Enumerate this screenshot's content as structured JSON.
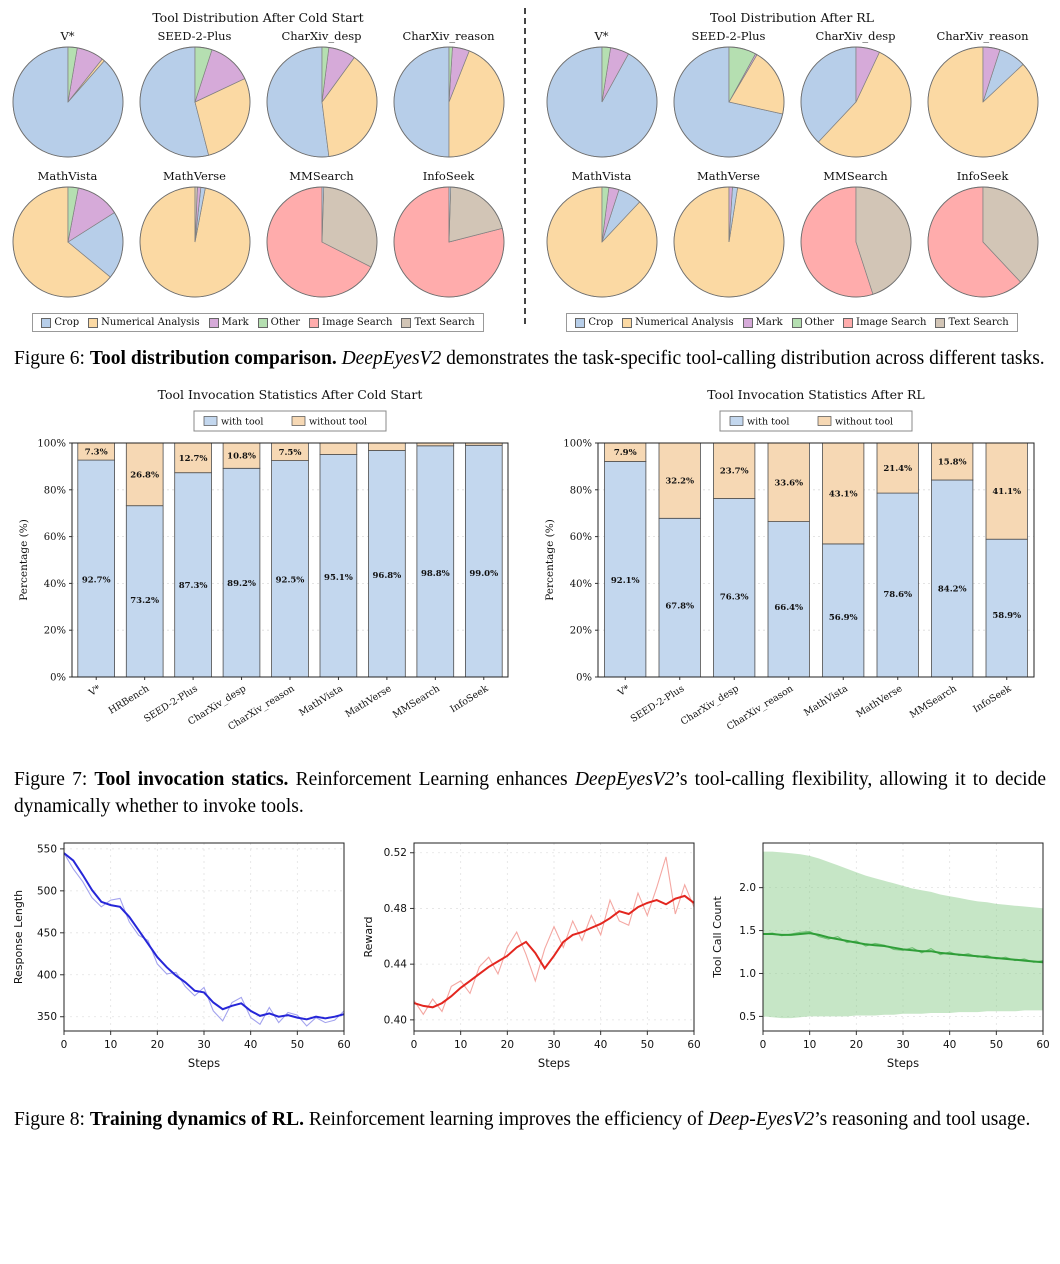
{
  "captions": {
    "fig6": {
      "label": "Figure 6: ",
      "bold": "Tool distribution comparison.",
      "pre": " ",
      "italic": "DeepEyesV2",
      "rest": " demonstrates the task-specific tool-calling distribution across different tasks."
    },
    "fig7": {
      "label": "Figure 7: ",
      "bold": "Tool invocation statics.",
      "pre": " Reinforcement Learning enhances ",
      "italic": "DeepEyesV2",
      "rest": "’s tool-calling flexibility, allowing it to decide dynamically whether to invoke tools."
    },
    "fig8": {
      "label": "Figure 8: ",
      "bold": "Training dynamics of RL.",
      "pre": " Reinforcement learning improves the efficiency of ",
      "italic": "Deep-EyesV2",
      "rest": "’s reasoning and tool usage."
    }
  },
  "pie_legend": [
    "Crop",
    "Numerical Analysis",
    "Mark",
    "Other",
    "Image Search",
    "Text Search"
  ],
  "tool_colors": {
    "Crop": "#b7cee9",
    "Numerical Analysis": "#fbd9a3",
    "Mark": "#d6aad9",
    "Other": "#b5dfb1",
    "Image Search": "#ffacac",
    "Text Search": "#d2c5b6"
  },
  "chart_data": [
    {
      "type": "pie",
      "title": "Tool Distribution After Cold Start",
      "pies": [
        {
          "label": "V*",
          "slices": [
            [
              "Crop",
              88.5
            ],
            [
              "Numerical Analysis",
              0.8
            ],
            [
              "Mark",
              8
            ],
            [
              "Other",
              2.7
            ]
          ]
        },
        {
          "label": "SEED-2-Plus",
          "slices": [
            [
              "Crop",
              54
            ],
            [
              "Numerical Analysis",
              28
            ],
            [
              "Mark",
              13
            ],
            [
              "Other",
              5
            ]
          ]
        },
        {
          "label": "CharXiv_desp",
          "slices": [
            [
              "Crop",
              52
            ],
            [
              "Numerical Analysis",
              38
            ],
            [
              "Mark",
              8
            ],
            [
              "Other",
              2
            ]
          ]
        },
        {
          "label": "CharXiv_reason",
          "slices": [
            [
              "Crop",
              50
            ],
            [
              "Numerical Analysis",
              44
            ],
            [
              "Mark",
              5
            ],
            [
              "Other",
              1
            ]
          ]
        },
        {
          "label": "MathVista",
          "slices": [
            [
              "Numerical Analysis",
              64
            ],
            [
              "Crop",
              20
            ],
            [
              "Mark",
              13
            ],
            [
              "Other",
              3
            ]
          ]
        },
        {
          "label": "MathVerse",
          "slices": [
            [
              "Numerical Analysis",
              97
            ],
            [
              "Crop",
              1.3
            ],
            [
              "Mark",
              1
            ],
            [
              "Text Search",
              0.7
            ]
          ]
        },
        {
          "label": "MMSearch",
          "slices": [
            [
              "Image Search",
              67.5
            ],
            [
              "Text Search",
              32
            ],
            [
              "Crop",
              0.5
            ]
          ]
        },
        {
          "label": "InfoSeek",
          "slices": [
            [
              "Image Search",
              79
            ],
            [
              "Text Search",
              20.5
            ],
            [
              "Crop",
              0.5
            ]
          ]
        }
      ]
    },
    {
      "type": "pie",
      "title": "Tool Distribution After RL",
      "pies": [
        {
          "label": "V*",
          "slices": [
            [
              "Crop",
              92
            ],
            [
              "Mark",
              5.5
            ],
            [
              "Other",
              2.5
            ]
          ]
        },
        {
          "label": "SEED-2-Plus",
          "slices": [
            [
              "Crop",
              71.5
            ],
            [
              "Numerical Analysis",
              20
            ],
            [
              "Mark",
              0.5
            ],
            [
              "Other",
              8
            ]
          ]
        },
        {
          "label": "CharXiv_desp",
          "slices": [
            [
              "Crop",
              38
            ],
            [
              "Numerical Analysis",
              55
            ],
            [
              "Mark",
              7
            ]
          ]
        },
        {
          "label": "CharXiv_reason",
          "slices": [
            [
              "Numerical Analysis",
              87
            ],
            [
              "Crop",
              8
            ],
            [
              "Mark",
              5
            ]
          ]
        },
        {
          "label": "MathVista",
          "slices": [
            [
              "Numerical Analysis",
              88
            ],
            [
              "Crop",
              7
            ],
            [
              "Mark",
              3
            ],
            [
              "Other",
              2
            ]
          ]
        },
        {
          "label": "MathVerse",
          "slices": [
            [
              "Numerical Analysis",
              97.5
            ],
            [
              "Crop",
              1.5
            ],
            [
              "Mark",
              1
            ]
          ]
        },
        {
          "label": "MMSearch",
          "slices": [
            [
              "Image Search",
              55
            ],
            [
              "Text Search",
              45
            ]
          ]
        },
        {
          "label": "InfoSeek",
          "slices": [
            [
              "Image Search",
              62
            ],
            [
              "Text Search",
              38
            ]
          ]
        }
      ]
    },
    {
      "type": "bar",
      "title": "Tool Invocation Statistics After Cold Start",
      "ylabel": "Percentage (%)",
      "categories": [
        "V*",
        "HRBench",
        "SEED-2-Plus",
        "CharXiv_desp",
        "CharXiv_reason",
        "MathVista",
        "MathVerse",
        "MMSearch",
        "InfoSeek"
      ],
      "series": [
        {
          "name": "with tool",
          "color": "#c3d7ee",
          "values": [
            92.7,
            73.2,
            87.3,
            89.2,
            92.5,
            95.1,
            96.8,
            98.8,
            99.0
          ]
        },
        {
          "name": "without tool",
          "color": "#f6d8b4",
          "values": [
            7.3,
            26.8,
            12.7,
            10.8,
            7.5,
            4.9,
            3.2,
            1.2,
            1.0
          ]
        }
      ],
      "ytick_vals": [
        0,
        20,
        40,
        60,
        80,
        100
      ],
      "ytick_labels": [
        "0%",
        "20%",
        "40%",
        "60%",
        "80%",
        "100%"
      ],
      "label_min": 5
    },
    {
      "type": "bar",
      "title": "Tool Invocation Statistics After RL",
      "ylabel": "Percentage (%)",
      "categories": [
        "V*",
        "SEED-2-Plus",
        "CharXiv_desp",
        "CharXiv_reason",
        "MathVista",
        "MathVerse",
        "MMSearch",
        "InfoSeek"
      ],
      "series": [
        {
          "name": "with tool",
          "color": "#c3d7ee",
          "values": [
            92.1,
            67.8,
            76.3,
            66.4,
            56.9,
            78.6,
            84.2,
            58.9
          ]
        },
        {
          "name": "without tool",
          "color": "#f6d8b4",
          "values": [
            7.9,
            32.2,
            23.7,
            33.6,
            43.1,
            21.4,
            15.8,
            41.1
          ]
        }
      ],
      "ytick_vals": [
        0,
        20,
        40,
        60,
        80,
        100
      ],
      "ytick_labels": [
        "0%",
        "20%",
        "40%",
        "60%",
        "80%",
        "100%"
      ],
      "label_min": 5
    },
    {
      "type": "line",
      "ylabel": "Response Length",
      "xlabel": "Steps",
      "color": "#2626d8",
      "raw_color": "#a3a3ee",
      "x_step": 2,
      "xtick_vals": [
        0,
        10,
        20,
        30,
        40,
        50,
        60
      ],
      "ylim": [
        333,
        557
      ],
      "ytick_vals": [
        350,
        400,
        450,
        500,
        550
      ],
      "ytick_labels": [
        "350",
        "400",
        "450",
        "500",
        "550"
      ],
      "smooth": [
        545,
        536,
        519,
        501,
        487,
        483,
        481,
        469,
        453,
        437,
        421,
        409,
        399,
        391,
        381,
        379,
        367,
        359,
        363,
        366,
        357,
        351,
        354,
        350,
        352,
        349,
        347,
        350,
        348,
        350,
        353
      ],
      "raw": [
        545,
        526,
        511,
        492,
        481,
        489,
        491,
        463,
        447,
        441,
        413,
        401,
        403,
        386,
        375,
        385,
        357,
        345,
        367,
        373,
        349,
        341,
        361,
        343,
        355,
        352,
        339,
        349,
        343,
        346,
        357
      ]
    },
    {
      "type": "line",
      "ylabel": "Reward",
      "xlabel": "Steps",
      "color": "#e3261f",
      "raw_color": "#f4a7a2",
      "x_step": 2,
      "xtick_vals": [
        0,
        10,
        20,
        30,
        40,
        50,
        60
      ],
      "ylim": [
        0.392,
        0.527
      ],
      "ytick_vals": [
        0.4,
        0.44,
        0.48,
        0.52
      ],
      "ytick_labels": [
        "0.40",
        "0.44",
        "0.48",
        "0.52"
      ],
      "smooth": [
        0.412,
        0.41,
        0.409,
        0.412,
        0.417,
        0.423,
        0.428,
        0.433,
        0.438,
        0.442,
        0.446,
        0.452,
        0.456,
        0.448,
        0.437,
        0.446,
        0.456,
        0.461,
        0.463,
        0.466,
        0.469,
        0.473,
        0.478,
        0.476,
        0.481,
        0.484,
        0.486,
        0.483,
        0.487,
        0.489,
        0.484
      ],
      "raw": [
        0.414,
        0.404,
        0.415,
        0.406,
        0.424,
        0.428,
        0.419,
        0.438,
        0.445,
        0.433,
        0.452,
        0.463,
        0.447,
        0.428,
        0.451,
        0.467,
        0.452,
        0.471,
        0.457,
        0.475,
        0.461,
        0.486,
        0.471,
        0.468,
        0.491,
        0.475,
        0.495,
        0.517,
        0.476,
        0.497,
        0.481
      ]
    },
    {
      "type": "line",
      "ylabel": "Tool Call Count",
      "xlabel": "Steps",
      "color": "#2f9e38",
      "raw_color": "#6fbf73",
      "band_color": "#80c880",
      "x_step": 2,
      "xtick_vals": [
        0,
        10,
        20,
        30,
        40,
        50,
        60
      ],
      "ylim": [
        0.33,
        2.52
      ],
      "ytick_vals": [
        0.5,
        1.0,
        1.5,
        2.0
      ],
      "ytick_labels": [
        "0.5",
        "1.0",
        "1.5",
        "2.0"
      ],
      "smooth": [
        1.46,
        1.46,
        1.45,
        1.45,
        1.46,
        1.47,
        1.45,
        1.42,
        1.4,
        1.38,
        1.36,
        1.34,
        1.33,
        1.32,
        1.3,
        1.28,
        1.27,
        1.26,
        1.26,
        1.24,
        1.23,
        1.22,
        1.21,
        1.2,
        1.19,
        1.18,
        1.17,
        1.16,
        1.15,
        1.14,
        1.13
      ],
      "raw": [
        1.46,
        1.47,
        1.44,
        1.46,
        1.48,
        1.49,
        1.43,
        1.4,
        1.43,
        1.36,
        1.38,
        1.32,
        1.35,
        1.33,
        1.28,
        1.27,
        1.3,
        1.24,
        1.29,
        1.22,
        1.25,
        1.21,
        1.23,
        1.19,
        1.21,
        1.17,
        1.19,
        1.15,
        1.17,
        1.13,
        1.15
      ],
      "band_upper": [
        2.42,
        2.42,
        2.41,
        2.4,
        2.39,
        2.37,
        2.34,
        2.3,
        2.26,
        2.22,
        2.18,
        2.14,
        2.11,
        2.08,
        2.05,
        2.02,
        1.99,
        1.97,
        1.95,
        1.92,
        1.9,
        1.88,
        1.86,
        1.84,
        1.83,
        1.81,
        1.8,
        1.79,
        1.78,
        1.77,
        1.76
      ],
      "band_lower": [
        0.5,
        0.49,
        0.48,
        0.48,
        0.49,
        0.5,
        0.5,
        0.5,
        0.5,
        0.5,
        0.51,
        0.51,
        0.51,
        0.52,
        0.52,
        0.53,
        0.53,
        0.53,
        0.54,
        0.54,
        0.54,
        0.55,
        0.55,
        0.55,
        0.56,
        0.56,
        0.56,
        0.56,
        0.57,
        0.57,
        0.57
      ]
    }
  ]
}
